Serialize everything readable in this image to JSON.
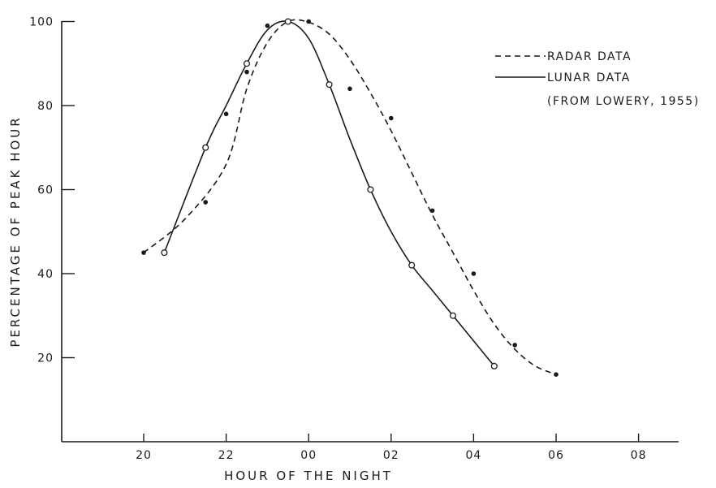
{
  "chart_data": {
    "type": "line",
    "xlabel": "HOUR OF THE NIGHT",
    "ylabel": "PERCENTAGE OF PEAK HOUR",
    "x_ticks": [
      "20",
      "22",
      "00",
      "02",
      "04",
      "06",
      "08"
    ],
    "y_ticks": [
      "20",
      "40",
      "60",
      "80",
      "100"
    ],
    "x_range_hours_after_20": [
      -2,
      12
    ],
    "ylim": [
      0,
      100
    ],
    "grid": false,
    "legend_position": "top-right",
    "legend": {
      "radar": "RADAR DATA",
      "lunar": "LUNAR DATA",
      "source": "(FROM LOWERY, 1955)"
    },
    "series": [
      {
        "name": "RADAR DATA",
        "style": "dashed",
        "marker": "filled-dot",
        "x": [
          "20:00",
          "21:30",
          "22:00",
          "22:30",
          "23:00",
          "00:00",
          "01:00",
          "02:00",
          "03:00",
          "04:00",
          "05:00",
          "06:00"
        ],
        "values": [
          45,
          57,
          78,
          88,
          99,
          100,
          84,
          77,
          55,
          40,
          23,
          16
        ]
      },
      {
        "name": "LUNAR DATA",
        "style": "solid",
        "marker": "open-circle",
        "x": [
          "20:30",
          "21:30",
          "22:30",
          "23:30",
          "00:30",
          "01:30",
          "02:30",
          "03:30",
          "04:30"
        ],
        "values": [
          45,
          70,
          90,
          100,
          85,
          60,
          42,
          30,
          18
        ]
      }
    ],
    "curves": {
      "radar_dashed": {
        "x": [
          "20:00",
          "21:00",
          "22:00",
          "22:30",
          "23:00",
          "23:30",
          "00:00",
          "00:30",
          "01:00",
          "01:30",
          "02:00",
          "02:30",
          "03:00",
          "03:30",
          "04:00",
          "04:30",
          "05:00",
          "05:30",
          "06:00"
        ],
        "values": [
          45,
          53,
          66,
          84,
          95,
          100,
          99.8,
          97,
          91,
          83,
          74,
          64,
          54,
          45,
          36,
          28,
          22,
          18,
          16
        ]
      },
      "lunar_solid": {
        "x": [
          "20:30",
          "21:30",
          "22:00",
          "22:30",
          "23:00",
          "23:30",
          "00:00",
          "00:30",
          "01:00",
          "01:30",
          "02:00",
          "02:30",
          "03:00",
          "03:30",
          "04:00",
          "04:30"
        ],
        "values": [
          45,
          70,
          80,
          90,
          98,
          100,
          96,
          85,
          72,
          60,
          50,
          42,
          36,
          30,
          24,
          18
        ]
      }
    }
  }
}
